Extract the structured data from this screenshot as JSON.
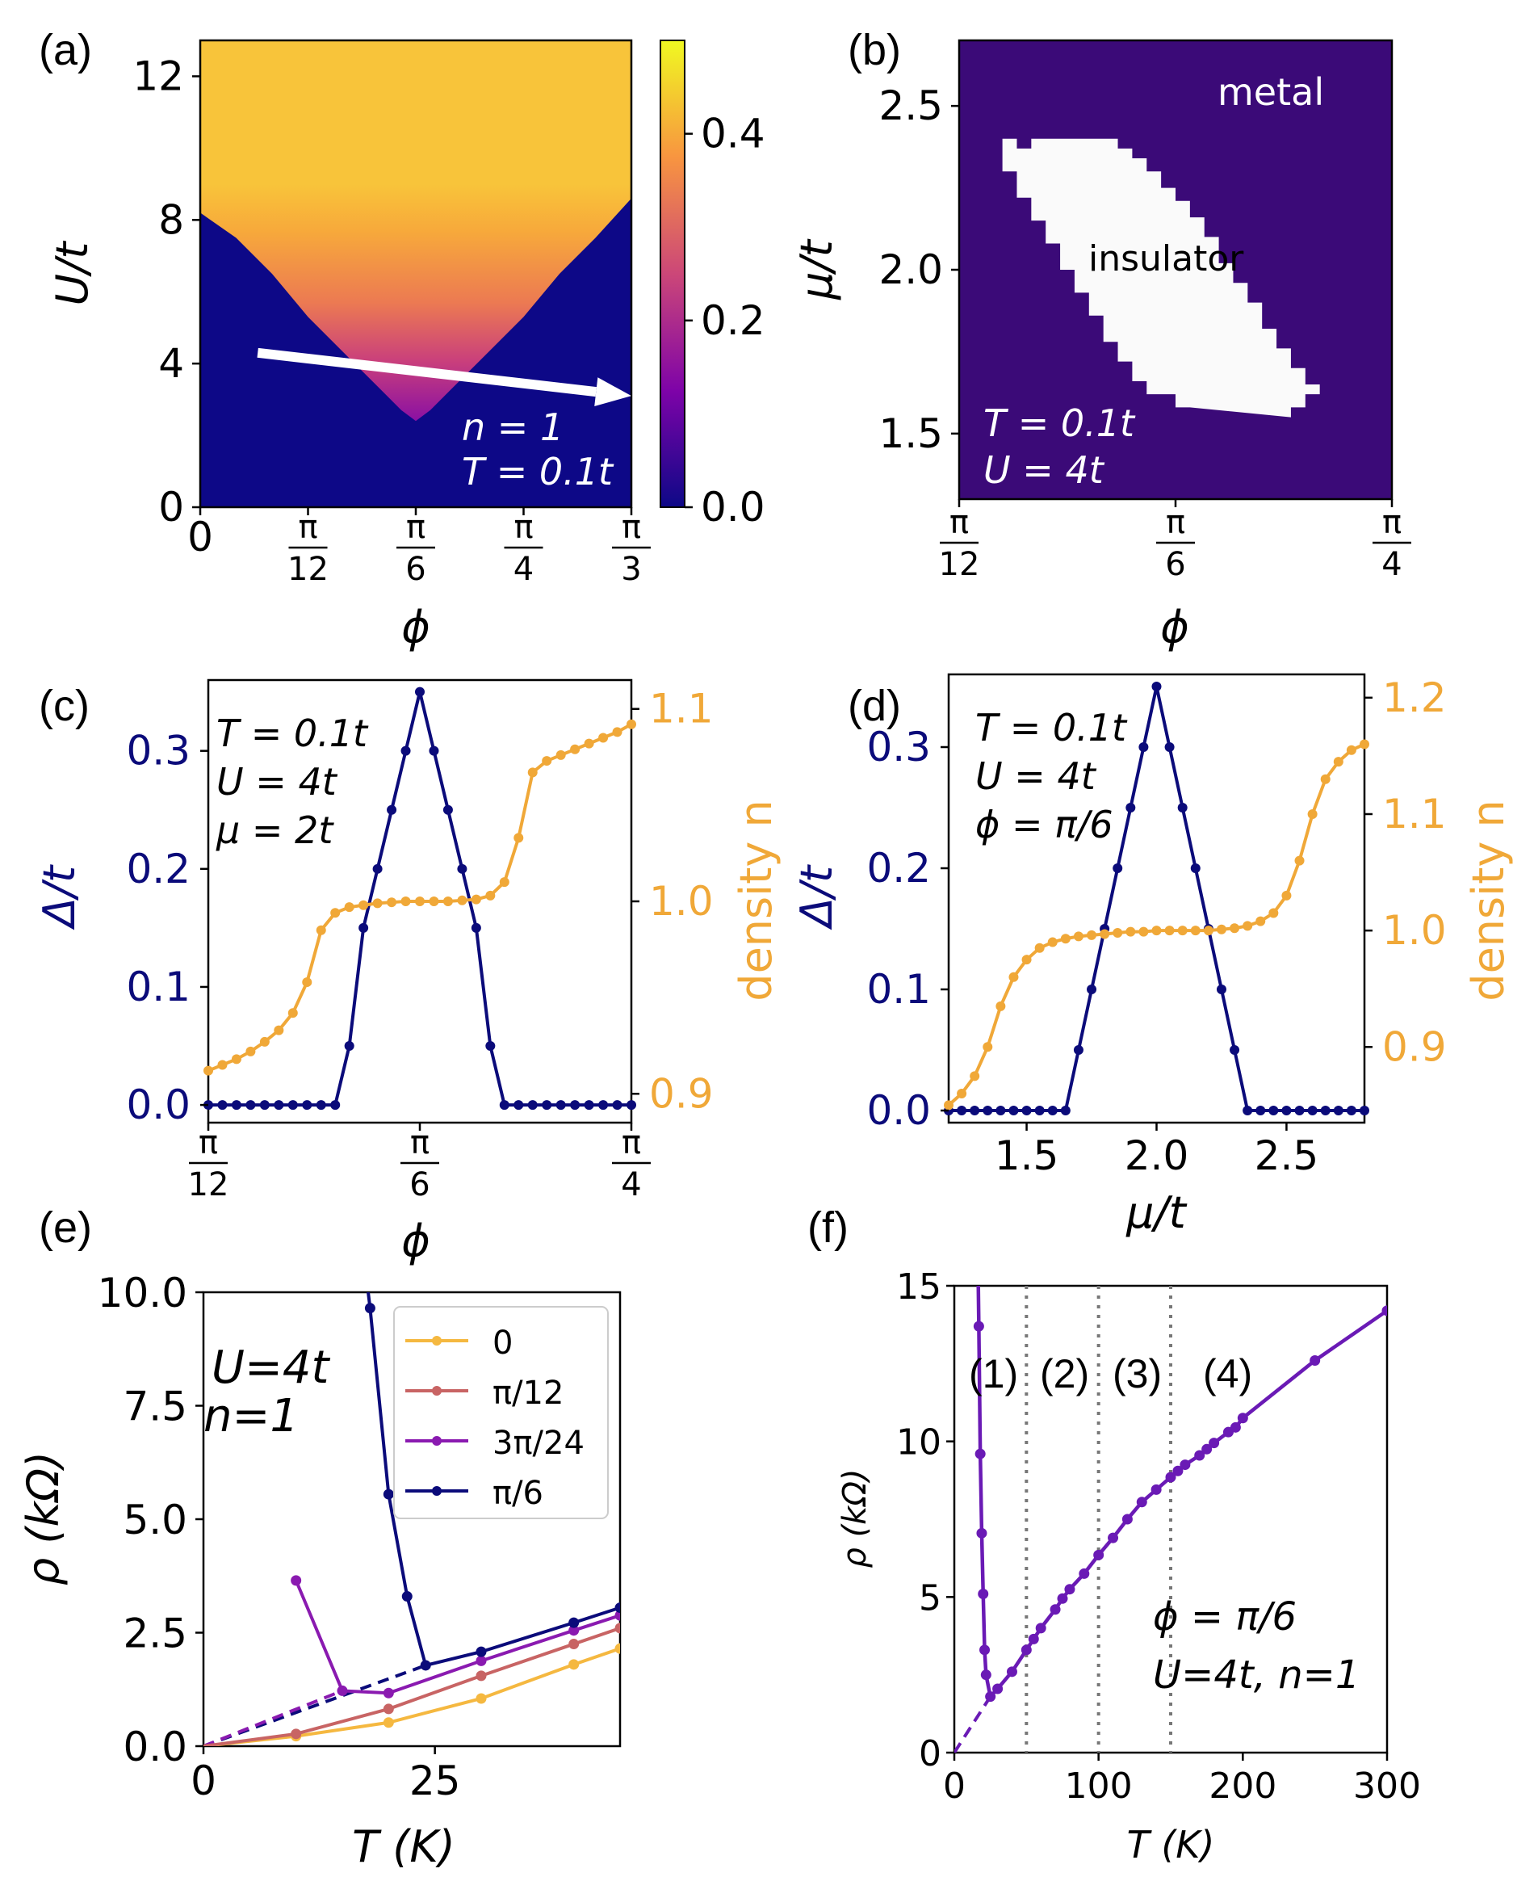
{
  "chart_data": [
    {
      "panel": "(a)",
      "type": "heatmap",
      "xlabel": "ϕ",
      "ylabel": "U/t",
      "xticks": [
        {
          "num": "0",
          "den": ""
        },
        {
          "num": "π",
          "den": "12"
        },
        {
          "num": "π",
          "den": "6"
        },
        {
          "num": "π",
          "den": "4"
        },
        {
          "num": "π",
          "den": "3"
        }
      ],
      "xlim": [
        0,
        60
      ],
      "ylim": [
        0,
        13
      ],
      "yticks": [
        "0",
        "4",
        "8",
        "12"
      ],
      "colorbar": {
        "ticks": [
          "0.0",
          "0.2",
          "0.4"
        ],
        "range": [
          0,
          0.5
        ]
      },
      "boundary": {
        "phi": [
          0,
          5,
          10,
          15,
          20,
          25,
          28,
          30,
          32,
          35,
          40,
          45,
          50,
          55,
          60
        ],
        "U": [
          8.2,
          7.5,
          6.5,
          5.3,
          4.3,
          3.3,
          2.7,
          2.4,
          2.7,
          3.3,
          4.3,
          5.3,
          6.5,
          7.5,
          8.6
        ]
      },
      "arrow": {
        "from": [
          8,
          4.3
        ],
        "to": [
          60,
          3.1
        ]
      },
      "annotations": [
        "n = 1",
        "T = 0.1t"
      ]
    },
    {
      "panel": "(b)",
      "type": "heatmap",
      "xlabel": "ϕ",
      "ylabel": "μ/t",
      "xticks": [
        {
          "num": "π",
          "den": "12"
        },
        {
          "num": "π",
          "den": "6"
        },
        {
          "num": "π",
          "den": "4"
        }
      ],
      "xlim": [
        15,
        45
      ],
      "ylim": [
        1.3,
        2.7
      ],
      "yticks": [
        "1.5",
        "2.0",
        "2.5"
      ],
      "region_labels": [
        "metal",
        "insulator"
      ],
      "annotations": [
        "T = 0.1t",
        "U = 4t"
      ]
    },
    {
      "panel": "(c)",
      "type": "line",
      "xlabel": "ϕ",
      "ylabel_left": "Δ/t",
      "ylabel_right": "density n",
      "xticks": [
        {
          "num": "π",
          "den": "12"
        },
        {
          "num": "π",
          "den": "6"
        },
        {
          "num": "π",
          "den": "4"
        }
      ],
      "xlim": [
        15,
        45
      ],
      "ylim_left": [
        -0.015,
        0.36
      ],
      "yticks_left": [
        "0.0",
        "0.1",
        "0.2",
        "0.3"
      ],
      "ylim_right": [
        0.885,
        1.115
      ],
      "yticks_right": [
        "0.9",
        "1.0",
        "1.1"
      ],
      "series": [
        {
          "name": "gap",
          "axis": "left",
          "color": "#0b0b7a",
          "x": [
            15,
            16,
            17,
            18,
            19,
            20,
            21,
            22,
            23,
            24,
            25,
            26,
            27,
            28,
            29,
            30,
            31,
            32,
            33,
            34,
            35,
            36,
            37,
            38,
            39,
            40,
            41,
            42,
            43,
            44,
            45
          ],
          "y": [
            0,
            0,
            0,
            0,
            0,
            0,
            0,
            0,
            0,
            0,
            0.05,
            0.15,
            0.2,
            0.25,
            0.3,
            0.35,
            0.3,
            0.25,
            0.2,
            0.15,
            0.05,
            0,
            0,
            0,
            0,
            0,
            0,
            0,
            0,
            0,
            0
          ]
        },
        {
          "name": "density",
          "axis": "right",
          "color": "#f0a838",
          "x": [
            15,
            16,
            17,
            18,
            19,
            20,
            21,
            22,
            23,
            24,
            25,
            26,
            27,
            28,
            29,
            30,
            31,
            32,
            33,
            34,
            35,
            36,
            37,
            38,
            39,
            40,
            41,
            42,
            43,
            44,
            45
          ],
          "y": [
            0.912,
            0.915,
            0.918,
            0.922,
            0.927,
            0.933,
            0.942,
            0.958,
            0.985,
            0.994,
            0.997,
            0.998,
            0.999,
            0.9995,
            1.0,
            1.0,
            1.0,
            1.0,
            1.0005,
            1.001,
            1.003,
            1.01,
            1.033,
            1.067,
            1.073,
            1.076,
            1.079,
            1.082,
            1.085,
            1.088,
            1.092
          ]
        }
      ],
      "annotations": [
        "T = 0.1t",
        "U = 4t",
        "μ = 2t"
      ]
    },
    {
      "panel": "(d)",
      "type": "line",
      "xlabel": "μ/t",
      "ylabel_left": "Δ/t",
      "ylabel_right": "density n",
      "xlim": [
        1.2,
        2.8
      ],
      "xticks": [
        "1.5",
        "2.0",
        "2.5"
      ],
      "ylim_left": [
        -0.01,
        0.36
      ],
      "yticks_left": [
        "0.0",
        "0.1",
        "0.2",
        "0.3"
      ],
      "ylim_right": [
        0.835,
        1.22
      ],
      "yticks_right": [
        "0.9",
        "1.0",
        "1.1",
        "1.2"
      ],
      "series": [
        {
          "name": "gap",
          "axis": "left",
          "color": "#0b0b7a",
          "x": [
            1.2,
            1.25,
            1.3,
            1.35,
            1.4,
            1.45,
            1.5,
            1.55,
            1.6,
            1.65,
            1.7,
            1.75,
            1.8,
            1.85,
            1.9,
            1.95,
            2.0,
            2.05,
            2.1,
            2.15,
            2.2,
            2.25,
            2.3,
            2.35,
            2.4,
            2.45,
            2.5,
            2.55,
            2.6,
            2.65,
            2.7,
            2.75,
            2.8
          ],
          "y": [
            0,
            0,
            0,
            0,
            0,
            0,
            0,
            0,
            0,
            0,
            0.05,
            0.1,
            0.15,
            0.2,
            0.25,
            0.3,
            0.35,
            0.3,
            0.25,
            0.2,
            0.15,
            0.1,
            0.05,
            0,
            0,
            0,
            0,
            0,
            0,
            0,
            0,
            0,
            0
          ]
        },
        {
          "name": "density",
          "axis": "right",
          "color": "#f0a838",
          "x": [
            1.2,
            1.25,
            1.3,
            1.35,
            1.4,
            1.45,
            1.5,
            1.55,
            1.6,
            1.65,
            1.7,
            1.75,
            1.8,
            1.85,
            1.9,
            1.95,
            2.0,
            2.05,
            2.1,
            2.15,
            2.2,
            2.25,
            2.3,
            2.35,
            2.4,
            2.45,
            2.5,
            2.55,
            2.6,
            2.65,
            2.7,
            2.75,
            2.8
          ],
          "y": [
            0.85,
            0.86,
            0.875,
            0.9,
            0.935,
            0.96,
            0.975,
            0.985,
            0.99,
            0.993,
            0.995,
            0.996,
            0.997,
            0.998,
            0.999,
            0.999,
            1.0,
            1.0,
            1.0,
            1.0,
            1.0,
            1.001,
            1.002,
            1.004,
            1.008,
            1.015,
            1.03,
            1.06,
            1.1,
            1.13,
            1.145,
            1.155,
            1.16
          ]
        }
      ],
      "annotations": [
        "T = 0.1t",
        "U = 4t",
        "ϕ = π/6"
      ]
    },
    {
      "panel": "(e)",
      "type": "line",
      "xlabel": "T (K)",
      "ylabel": "ρ (kΩ)",
      "xlim": [
        0,
        45
      ],
      "xticks": [
        "0",
        "25"
      ],
      "ylim": [
        0,
        10
      ],
      "yticks": [
        "0.0",
        "2.5",
        "5.0",
        "7.5",
        "10.0"
      ],
      "legend_position": "top-right",
      "series": [
        {
          "name": "0",
          "color": "#f5b840",
          "x": [
            10,
            20,
            30,
            40,
            45
          ],
          "y": [
            0.22,
            0.52,
            1.05,
            1.8,
            2.15
          ]
        },
        {
          "name": "π/12",
          "color": "#c86464",
          "x": [
            10,
            20,
            30,
            40,
            45
          ],
          "y": [
            0.27,
            0.82,
            1.55,
            2.25,
            2.6
          ]
        },
        {
          "name": "3π/24",
          "color": "#8a1ab0",
          "x": [
            10,
            15,
            20,
            30,
            40,
            45
          ],
          "y": [
            3.65,
            1.22,
            1.17,
            1.88,
            2.55,
            2.88
          ]
        },
        {
          "name": "π/6",
          "color": "#0b0b7a",
          "x": [
            18,
            20,
            22,
            24,
            30,
            40,
            45
          ],
          "y": [
            9.65,
            5.55,
            3.3,
            1.78,
            2.08,
            2.72,
            3.05
          ]
        }
      ],
      "dashed_extrapolation": {
        "pi6_to": [
          24,
          1.78
        ],
        "3pi24_to": [
          15,
          1.22
        ]
      },
      "annotations": [
        "U=4t",
        "n=1"
      ]
    },
    {
      "panel": "(f)",
      "type": "line",
      "xlabel": "T (K)",
      "ylabel": "ρ (kΩ)",
      "xlim": [
        0,
        300
      ],
      "xticks": [
        "0",
        "100",
        "200",
        "300"
      ],
      "ylim": [
        0,
        15
      ],
      "yticks": [
        "0",
        "5",
        "10",
        "15"
      ],
      "regions": [
        "(1)",
        "(2)",
        "(3)",
        "(4)"
      ],
      "dividers": [
        50,
        100,
        150
      ],
      "series": [
        {
          "name": "ϕ=π/6",
          "color": "#6a1ab5",
          "x": [
            17,
            18,
            19,
            20,
            21,
            22,
            25,
            30,
            40,
            50,
            55,
            60,
            70,
            75,
            80,
            90,
            100,
            110,
            120,
            130,
            140,
            150,
            155,
            160,
            170,
            175,
            180,
            190,
            195,
            200,
            250,
            300
          ],
          "y": [
            13.7,
            9.6,
            7.05,
            5.1,
            3.3,
            2.5,
            1.8,
            2.05,
            2.6,
            3.3,
            3.65,
            4.0,
            4.6,
            4.95,
            5.25,
            5.75,
            6.35,
            6.9,
            7.5,
            8.05,
            8.45,
            8.85,
            9.05,
            9.25,
            9.55,
            9.75,
            9.95,
            10.3,
            10.45,
            10.75,
            12.6,
            14.2
          ]
        }
      ],
      "annotations": [
        "ϕ = π/6",
        "U=4t, n=1"
      ]
    }
  ],
  "labels": {
    "a": "(a)",
    "b": "(b)",
    "c": "(c)",
    "d": "(d)",
    "e": "(e)",
    "f": "(f)",
    "a_n": "n = 1",
    "a_T": "T = 0.1t",
    "b_metal": "metal",
    "b_ins": "insulator",
    "b_T": "T = 0.1t",
    "b_U": "U = 4t",
    "c_T": "T = 0.1t",
    "c_U": "U = 4t",
    "c_mu": "μ = 2t",
    "d_T": "T = 0.1t",
    "d_U": "U = 4t",
    "d_phi": "ϕ = π/6",
    "e_U": "U=4t",
    "e_n": "n=1",
    "f_phi": "ϕ = π/6",
    "f_Un": "U=4t, n=1",
    "f_r1": "(1)",
    "f_r2": "(2)",
    "f_r3": "(3)",
    "f_r4": "(4)",
    "phi": "ϕ",
    "U_t": "U/t",
    "mu_t": "μ/t",
    "Delta_t": "Δ/t",
    "density": "density n",
    "TK": "T (K)",
    "rho": "ρ (kΩ)"
  },
  "colors": {
    "navy": "#0b0b7a",
    "orange": "#f0a838",
    "purple": "#6a1ab5",
    "heat_bg": "#0d0887",
    "metal_bg": "#3b0a78"
  }
}
